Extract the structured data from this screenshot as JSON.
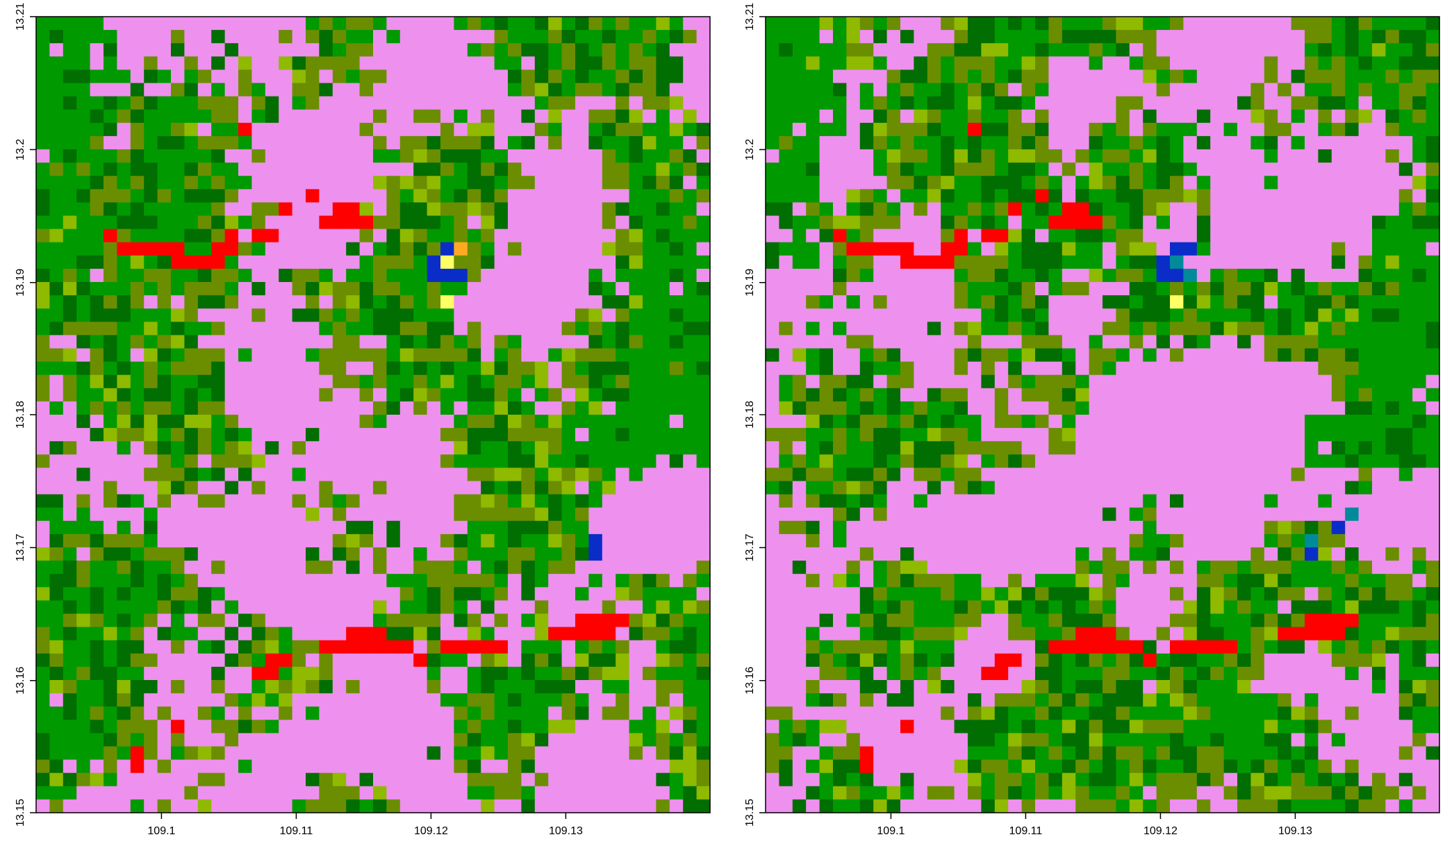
{
  "palette": {
    "pink": "#ee90ee",
    "olive": "#6b8e00",
    "green": "#009a00",
    "darkgreen": "#006e00",
    "lightolive": "#8fba00",
    "red": "#ff0000",
    "blue": "#0a2dc8",
    "yellow": "#ffff66",
    "orange": "#ffaa22",
    "teal": "#008a9a"
  },
  "grid": {
    "cols": 50,
    "rows": 60
  },
  "panels": [
    {
      "id": "left",
      "x_ticks": [
        "109.1",
        "109.11",
        "109.12",
        "109.13"
      ],
      "y_ticks": [
        "13.15",
        "13.16",
        "13.17",
        "13.18",
        "13.19",
        "13.2",
        "13.21"
      ],
      "seed": 7,
      "special_cells": [
        {
          "c": 5,
          "r": 16,
          "k": "red"
        },
        {
          "c": 6,
          "r": 17,
          "k": "red"
        },
        {
          "c": 7,
          "r": 17,
          "k": "red"
        },
        {
          "c": 8,
          "r": 17,
          "k": "red"
        },
        {
          "c": 9,
          "r": 17,
          "k": "red"
        },
        {
          "c": 10,
          "r": 17,
          "k": "red"
        },
        {
          "c": 10,
          "r": 18,
          "k": "red"
        },
        {
          "c": 11,
          "r": 18,
          "k": "red"
        },
        {
          "c": 12,
          "r": 18,
          "k": "red"
        },
        {
          "c": 13,
          "r": 18,
          "k": "red"
        },
        {
          "c": 13,
          "r": 17,
          "k": "red"
        },
        {
          "c": 14,
          "r": 17,
          "k": "red"
        },
        {
          "c": 14,
          "r": 16,
          "k": "red"
        },
        {
          "c": 16,
          "r": 16,
          "k": "red"
        },
        {
          "c": 17,
          "r": 16,
          "k": "red"
        },
        {
          "c": 15,
          "r": 8,
          "k": "red"
        },
        {
          "c": 18,
          "r": 14,
          "k": "red"
        },
        {
          "c": 20,
          "r": 13,
          "k": "red"
        },
        {
          "c": 21,
          "r": 15,
          "k": "red"
        },
        {
          "c": 22,
          "r": 15,
          "k": "red"
        },
        {
          "c": 22,
          "r": 14,
          "k": "red"
        },
        {
          "c": 23,
          "r": 14,
          "k": "red"
        },
        {
          "c": 23,
          "r": 15,
          "k": "red"
        },
        {
          "c": 24,
          "r": 15,
          "k": "red"
        },
        {
          "c": 30,
          "r": 17,
          "k": "blue"
        },
        {
          "c": 30,
          "r": 18,
          "k": "blue"
        },
        {
          "c": 29,
          "r": 19,
          "k": "blue"
        },
        {
          "c": 30,
          "r": 19,
          "k": "blue"
        },
        {
          "c": 31,
          "r": 19,
          "k": "blue"
        },
        {
          "c": 29,
          "r": 18,
          "k": "blue"
        },
        {
          "c": 31,
          "r": 17,
          "k": "orange"
        },
        {
          "c": 30,
          "r": 18,
          "k": "yellow"
        },
        {
          "c": 30,
          "r": 21,
          "k": "yellow"
        },
        {
          "c": 41,
          "r": 39,
          "k": "blue"
        },
        {
          "c": 41,
          "r": 40,
          "k": "blue"
        },
        {
          "c": 40,
          "r": 45,
          "k": "red"
        },
        {
          "c": 41,
          "r": 45,
          "k": "red"
        },
        {
          "c": 42,
          "r": 45,
          "k": "red"
        },
        {
          "c": 43,
          "r": 45,
          "k": "red"
        },
        {
          "c": 38,
          "r": 46,
          "k": "red"
        },
        {
          "c": 39,
          "r": 46,
          "k": "red"
        },
        {
          "c": 40,
          "r": 46,
          "k": "red"
        },
        {
          "c": 41,
          "r": 46,
          "k": "red"
        },
        {
          "c": 42,
          "r": 46,
          "k": "red"
        },
        {
          "c": 23,
          "r": 46,
          "k": "red"
        },
        {
          "c": 24,
          "r": 46,
          "k": "red"
        },
        {
          "c": 25,
          "r": 46,
          "k": "red"
        },
        {
          "c": 21,
          "r": 47,
          "k": "red"
        },
        {
          "c": 22,
          "r": 47,
          "k": "red"
        },
        {
          "c": 23,
          "r": 47,
          "k": "red"
        },
        {
          "c": 24,
          "r": 47,
          "k": "red"
        },
        {
          "c": 25,
          "r": 47,
          "k": "red"
        },
        {
          "c": 26,
          "r": 47,
          "k": "red"
        },
        {
          "c": 27,
          "r": 47,
          "k": "red"
        },
        {
          "c": 30,
          "r": 47,
          "k": "red"
        },
        {
          "c": 31,
          "r": 47,
          "k": "red"
        },
        {
          "c": 32,
          "r": 47,
          "k": "red"
        },
        {
          "c": 33,
          "r": 47,
          "k": "red"
        },
        {
          "c": 34,
          "r": 47,
          "k": "red"
        },
        {
          "c": 28,
          "r": 48,
          "k": "red"
        },
        {
          "c": 17,
          "r": 48,
          "k": "red"
        },
        {
          "c": 18,
          "r": 48,
          "k": "red"
        },
        {
          "c": 16,
          "r": 49,
          "k": "red"
        },
        {
          "c": 17,
          "r": 49,
          "k": "red"
        },
        {
          "c": 10,
          "r": 53,
          "k": "red"
        },
        {
          "c": 7,
          "r": 55,
          "k": "red"
        },
        {
          "c": 7,
          "r": 56,
          "k": "red"
        }
      ]
    },
    {
      "id": "right",
      "x_ticks": [
        "109.1",
        "109.11",
        "109.12",
        "109.13"
      ],
      "y_ticks": [
        "13.15",
        "13.16",
        "13.17",
        "13.18",
        "13.19",
        "13.2",
        "13.21"
      ],
      "seed": 13,
      "special_cells": [
        {
          "c": 5,
          "r": 16,
          "k": "red"
        },
        {
          "c": 6,
          "r": 17,
          "k": "red"
        },
        {
          "c": 7,
          "r": 17,
          "k": "red"
        },
        {
          "c": 8,
          "r": 17,
          "k": "red"
        },
        {
          "c": 9,
          "r": 17,
          "k": "red"
        },
        {
          "c": 10,
          "r": 17,
          "k": "red"
        },
        {
          "c": 10,
          "r": 18,
          "k": "red"
        },
        {
          "c": 11,
          "r": 18,
          "k": "red"
        },
        {
          "c": 12,
          "r": 18,
          "k": "red"
        },
        {
          "c": 13,
          "r": 18,
          "k": "red"
        },
        {
          "c": 13,
          "r": 17,
          "k": "red"
        },
        {
          "c": 14,
          "r": 17,
          "k": "red"
        },
        {
          "c": 14,
          "r": 16,
          "k": "red"
        },
        {
          "c": 16,
          "r": 16,
          "k": "red"
        },
        {
          "c": 17,
          "r": 16,
          "k": "red"
        },
        {
          "c": 15,
          "r": 8,
          "k": "red"
        },
        {
          "c": 18,
          "r": 14,
          "k": "red"
        },
        {
          "c": 20,
          "r": 13,
          "k": "red"
        },
        {
          "c": 21,
          "r": 15,
          "k": "red"
        },
        {
          "c": 22,
          "r": 15,
          "k": "red"
        },
        {
          "c": 22,
          "r": 14,
          "k": "red"
        },
        {
          "c": 23,
          "r": 14,
          "k": "red"
        },
        {
          "c": 23,
          "r": 15,
          "k": "red"
        },
        {
          "c": 24,
          "r": 15,
          "k": "red"
        },
        {
          "c": 30,
          "r": 17,
          "k": "blue"
        },
        {
          "c": 31,
          "r": 17,
          "k": "blue"
        },
        {
          "c": 30,
          "r": 18,
          "k": "blue"
        },
        {
          "c": 29,
          "r": 19,
          "k": "blue"
        },
        {
          "c": 30,
          "r": 19,
          "k": "blue"
        },
        {
          "c": 29,
          "r": 18,
          "k": "blue"
        },
        {
          "c": 30,
          "r": 18,
          "k": "teal"
        },
        {
          "c": 31,
          "r": 19,
          "k": "teal"
        },
        {
          "c": 30,
          "r": 21,
          "k": "yellow"
        },
        {
          "c": 43,
          "r": 37,
          "k": "teal"
        },
        {
          "c": 42,
          "r": 38,
          "k": "blue"
        },
        {
          "c": 40,
          "r": 39,
          "k": "teal"
        },
        {
          "c": 40,
          "r": 40,
          "k": "blue"
        },
        {
          "c": 40,
          "r": 45,
          "k": "red"
        },
        {
          "c": 41,
          "r": 45,
          "k": "red"
        },
        {
          "c": 42,
          "r": 45,
          "k": "red"
        },
        {
          "c": 43,
          "r": 45,
          "k": "red"
        },
        {
          "c": 38,
          "r": 46,
          "k": "red"
        },
        {
          "c": 39,
          "r": 46,
          "k": "red"
        },
        {
          "c": 40,
          "r": 46,
          "k": "red"
        },
        {
          "c": 41,
          "r": 46,
          "k": "red"
        },
        {
          "c": 42,
          "r": 46,
          "k": "red"
        },
        {
          "c": 23,
          "r": 46,
          "k": "red"
        },
        {
          "c": 24,
          "r": 46,
          "k": "red"
        },
        {
          "c": 25,
          "r": 46,
          "k": "red"
        },
        {
          "c": 21,
          "r": 47,
          "k": "red"
        },
        {
          "c": 22,
          "r": 47,
          "k": "red"
        },
        {
          "c": 23,
          "r": 47,
          "k": "red"
        },
        {
          "c": 24,
          "r": 47,
          "k": "red"
        },
        {
          "c": 25,
          "r": 47,
          "k": "red"
        },
        {
          "c": 26,
          "r": 47,
          "k": "red"
        },
        {
          "c": 27,
          "r": 47,
          "k": "red"
        },
        {
          "c": 30,
          "r": 47,
          "k": "red"
        },
        {
          "c": 31,
          "r": 47,
          "k": "red"
        },
        {
          "c": 32,
          "r": 47,
          "k": "red"
        },
        {
          "c": 33,
          "r": 47,
          "k": "red"
        },
        {
          "c": 34,
          "r": 47,
          "k": "red"
        },
        {
          "c": 28,
          "r": 48,
          "k": "red"
        },
        {
          "c": 17,
          "r": 48,
          "k": "red"
        },
        {
          "c": 18,
          "r": 48,
          "k": "red"
        },
        {
          "c": 16,
          "r": 49,
          "k": "red"
        },
        {
          "c": 17,
          "r": 49,
          "k": "red"
        },
        {
          "c": 10,
          "r": 53,
          "k": "red"
        },
        {
          "c": 7,
          "r": 55,
          "k": "red"
        },
        {
          "c": 7,
          "r": 56,
          "k": "red"
        }
      ]
    }
  ]
}
